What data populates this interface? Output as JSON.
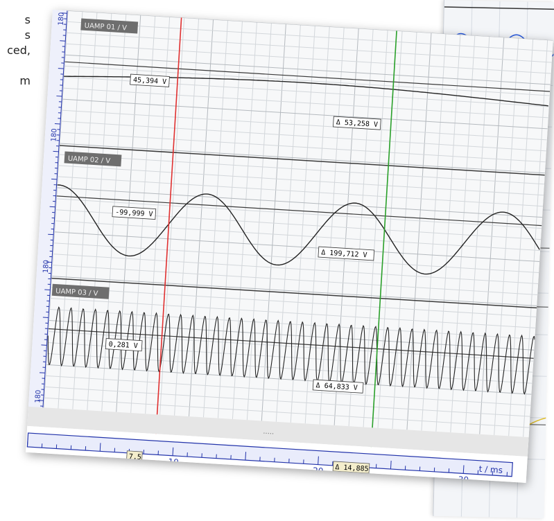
{
  "prose_fragments": [
    "s",
    "s",
    "ced,",
    "",
    "m"
  ],
  "channels": [
    {
      "name": "UAMP 01 / V",
      "scale_label": "180",
      "cursor_value": "45,394 V",
      "delta_value": "Δ 53,258 V"
    },
    {
      "name": "UAMP 02 / V",
      "scale_label": "180",
      "cursor_value": "-99,999 V",
      "delta_value": "Δ 199,712 V"
    },
    {
      "name": "UAMP 03 / V",
      "scale_label": "180",
      "cursor_value": "0,281 V",
      "delta_value": "Δ 64,833 V"
    }
  ],
  "scale_bottom_label": "180",
  "time_axis": {
    "unit_label": "t / ms",
    "ticks": [
      "10",
      "20",
      "30"
    ],
    "red_cursor_time": "7,5",
    "delta_time": "Δ 14,885"
  },
  "scroll_dots": ".....",
  "colors": {
    "red_cursor": "#e03030",
    "green_cursor": "#2aa02a",
    "axis_blue": "#2233aa",
    "grid": "#c4c8cc",
    "trace": "#222222",
    "title_box": "#6e6e6e"
  }
}
